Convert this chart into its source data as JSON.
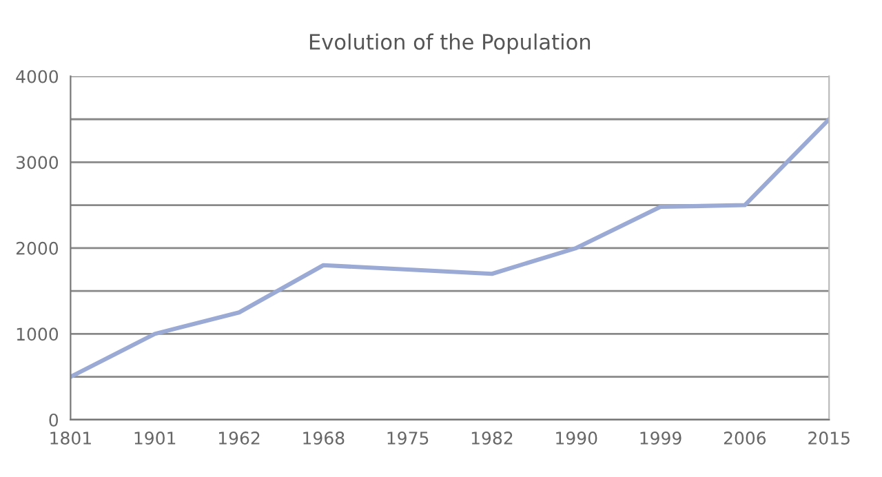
{
  "chart_data": {
    "type": "line",
    "title": "Evolution of the Population",
    "categories": [
      "1801",
      "1901",
      "1962",
      "1968",
      "1975",
      "1982",
      "1990",
      "1999",
      "2006",
      "2015"
    ],
    "series": [
      {
        "color": "#9aaad4",
        "values": [
          500,
          1000,
          1250,
          1800,
          1750,
          1700,
          2000,
          2480,
          2500,
          3500
        ]
      }
    ],
    "ylim": [
      0,
      4000
    ],
    "yticks": [
      0,
      {
        "value": 500,
        "label": null
      },
      1000,
      {
        "value": 1500,
        "label": null
      },
      2000,
      {
        "value": 2500,
        "label": null
      },
      3000,
      {
        "value": 3500,
        "label": null
      },
      4000
    ],
    "grid": "y",
    "marker": "none",
    "line_style": "solid"
  }
}
